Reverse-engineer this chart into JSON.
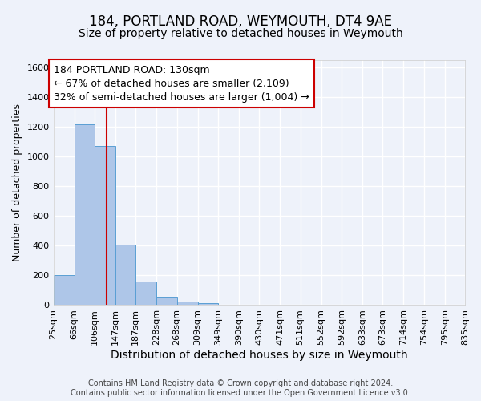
{
  "title": "184, PORTLAND ROAD, WEYMOUTH, DT4 9AE",
  "subtitle": "Size of property relative to detached houses in Weymouth",
  "xlabel": "Distribution of detached houses by size in Weymouth",
  "ylabel": "Number of detached properties",
  "bin_edges": [
    25,
    66,
    106,
    147,
    187,
    228,
    268,
    309,
    349,
    390,
    430,
    471,
    511,
    552,
    592,
    633,
    673,
    714,
    754,
    795,
    835
  ],
  "bar_heights": [
    200,
    1220,
    1070,
    410,
    160,
    55,
    25,
    15,
    0,
    0,
    0,
    0,
    0,
    0,
    0,
    0,
    0,
    0,
    0,
    0
  ],
  "bar_color": "#aec6e8",
  "bar_edge_color": "#5a9fd4",
  "property_line_x": 130,
  "property_line_color": "#cc0000",
  "ylim": [
    0,
    1650
  ],
  "xlim": [
    25,
    835
  ],
  "annotation_line1": "184 PORTLAND ROAD: 130sqm",
  "annotation_line2": "← 67% of detached houses are smaller (2,109)",
  "annotation_line3": "32% of semi-detached houses are larger (1,004) →",
  "annotation_box_facecolor": "white",
  "annotation_box_edgecolor": "#cc0000",
  "footer_text": "Contains HM Land Registry data © Crown copyright and database right 2024.\nContains public sector information licensed under the Open Government Licence v3.0.",
  "background_color": "#eef2fa",
  "grid_color": "white",
  "title_fontsize": 12,
  "subtitle_fontsize": 10,
  "xlabel_fontsize": 10,
  "ylabel_fontsize": 9,
  "tick_fontsize": 8,
  "annotation_fontsize": 9,
  "footer_fontsize": 7
}
